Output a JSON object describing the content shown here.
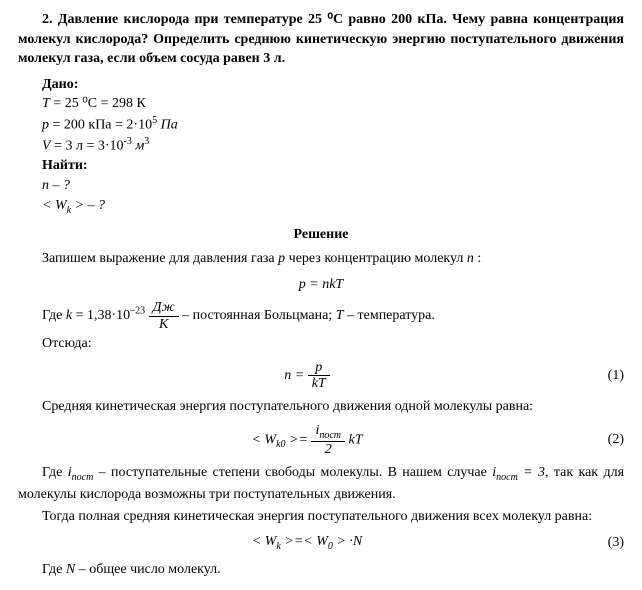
{
  "problem": {
    "number_prefix": "2.",
    "statement": "Давление кислорода при температуре 25 ⁰С равно 200 кПа. Чему равна концентрация молекул кислорода? Определить среднюю кинетическую энергию поступательного движения молекул газа, если объем сосуда равен 3 л."
  },
  "labels": {
    "given": "Дано:",
    "find": "Найти:",
    "solution": "Решение"
  },
  "given": {
    "T_var": "T",
    "T_eq": " = 25 ⁰C = 298 К",
    "p_var": "p",
    "p_eq": " = 200 кПа = 2·10",
    "p_exp": "5",
    "p_unit": " Па",
    "V_var": "V",
    "V_eq": " = 3 л = 3·10",
    "V_exp": "-3",
    "V_unit": " м",
    "V_unit_exp": "3"
  },
  "find": {
    "n": "n – ?",
    "W": "< W",
    "W_sub": "k",
    "W_tail": " > – ?"
  },
  "solution": {
    "intro": "Запишем выражение для давления газа ",
    "intro_p": "p",
    "intro2": " через концентрацию молекул ",
    "intro_n": "n",
    "intro3": " :",
    "eq0": "p = nkT",
    "where1a": "Где ",
    "k_var": "k",
    "k_eq": " = 1,38·10",
    "k_exp": "–23",
    "frac_J": "Дж",
    "frac_K": "К",
    "where1b": " – постоянная Больцмана; ",
    "T_var2": "T",
    "where1c": " – температура.",
    "hence": "Отсюда:",
    "eq1_num": "p",
    "eq1_den": "kT",
    "eq1_left": "n = ",
    "eq1_no": "(1)",
    "para2": "Средняя кинетическая энергия поступательного движения одной молекулы равна:",
    "eq2_left": "< W",
    "eq2_sub": "k0",
    "eq2_mid": " >= ",
    "eq2_num": "i",
    "eq2_num_sub": "пост",
    "eq2_den": "2",
    "eq2_right": " kT",
    "eq2_no": "(2)",
    "para3a": "Где ",
    "i_var": "i",
    "i_sub": "пост",
    "para3b": " – поступательные степени свободы молекулы. В нашем случае ",
    "i_eq": " = 3",
    "para3c": ", так как для молекулы кислорода возможны три поступательных движения.",
    "para4": "Тогда полная средняя кинетическая энергия поступательного движения всех молекул равна:",
    "eq3_left": "< W",
    "eq3_sub": "k",
    "eq3_mid": " >=< W",
    "eq3_sub2": "0",
    "eq3_right": " > ·N",
    "eq3_no": "(3)",
    "para5a": "Где ",
    "N_var": "N",
    "para5b": " – общее число молекул."
  },
  "styles": {
    "base_font_size_pt": 11,
    "text_color": "#000000",
    "background_color": "#ffffff"
  }
}
